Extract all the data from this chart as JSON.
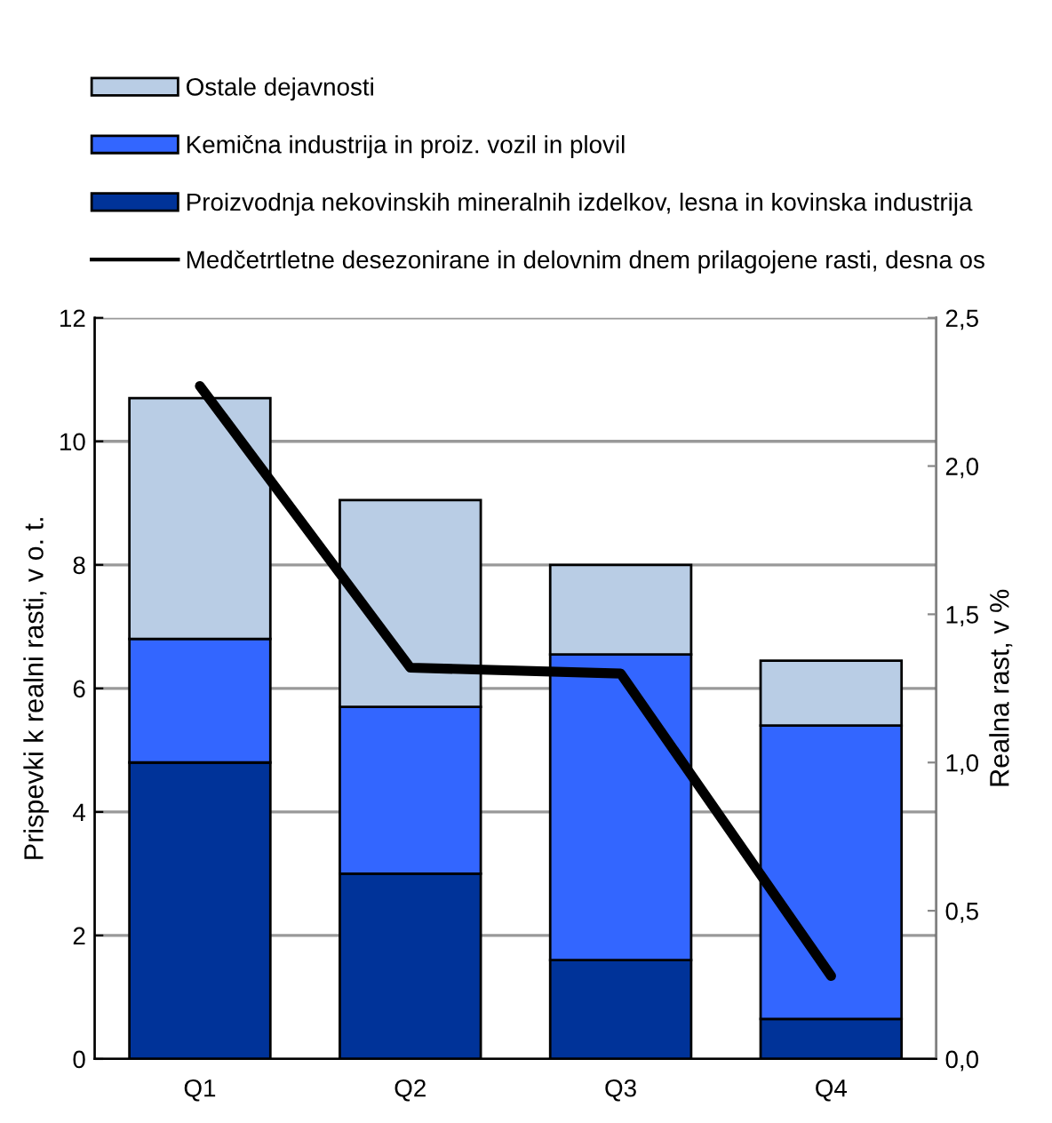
{
  "chart_data": {
    "type": "bar",
    "stacked": true,
    "categories": [
      "Q1",
      "Q2",
      "Q3",
      "Q4"
    ],
    "ylabel": "Prispevki k realni rasti, v o. t.",
    "y2label": "Realna rast, v %",
    "ylim": [
      0,
      12
    ],
    "yticks": [
      0,
      2,
      4,
      6,
      8,
      10,
      12
    ],
    "y2lim": [
      0,
      2.5
    ],
    "y2ticks": [
      {
        "value": 0,
        "label": "0,0"
      },
      {
        "value": 0.5,
        "label": "0,5"
      },
      {
        "value": 1.0,
        "label": "1,0"
      },
      {
        "value": 1.5,
        "label": "1,5"
      },
      {
        "value": 2.0,
        "label": "2,0"
      },
      {
        "value": 2.5,
        "label": "2,5"
      }
    ],
    "grid": "y",
    "legend": "top",
    "series": [
      {
        "name": "Proizvodnja nekovinskih mineralnih izdelkov, lesna in kovinska industrija",
        "color": "#003399",
        "values": [
          4.8,
          3.0,
          1.6,
          0.65
        ]
      },
      {
        "name": "Kemična industrija in proiz. vozil in plovil",
        "color": "#3366ff",
        "values": [
          2.0,
          2.7,
          4.95,
          4.75
        ]
      },
      {
        "name": "Ostale dejavnosti",
        "color": "#b9cde5",
        "values": [
          3.9,
          3.35,
          1.45,
          1.05
        ]
      },
      {
        "name": "Medčetrtletne desezonirane in delovnim dnem prilagojene rasti, desna os",
        "type": "line",
        "axis": "y2",
        "color": "#000000",
        "values": [
          2.27,
          1.32,
          1.3,
          0.28
        ]
      }
    ]
  }
}
